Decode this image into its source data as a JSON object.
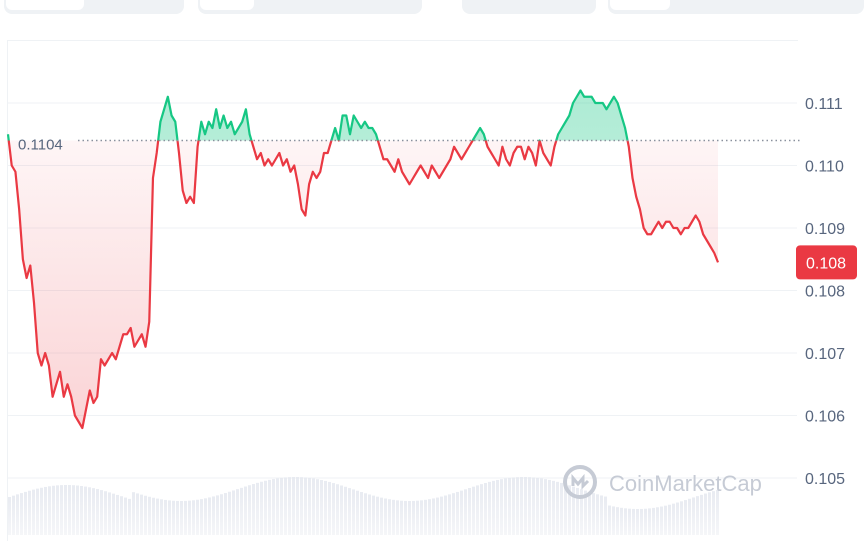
{
  "colors": {
    "up": "#16c784",
    "down": "#ea3943",
    "grid": "#eff2f5",
    "reference_line": "#8a919e",
    "axis_text": "#58667e",
    "badge_bg": "#ea3943",
    "volume": "#dfe3ee"
  },
  "watermark": {
    "text": "CoinMarketCap",
    "icon": "coinmarketcap-logo-icon"
  },
  "chart_data": {
    "type": "area",
    "title": "",
    "xlabel": "",
    "ylabel": "",
    "ylim": [
      0.1044,
      0.1117
    ],
    "y_ticks": [
      {
        "value": 0.111,
        "label": "0.111"
      },
      {
        "value": 0.11,
        "label": "0.110"
      },
      {
        "value": 0.109,
        "label": "0.109"
      },
      {
        "value": 0.108,
        "label": "0.108"
      },
      {
        "value": 0.107,
        "label": "0.107"
      },
      {
        "value": 0.106,
        "label": "0.106"
      },
      {
        "value": 0.105,
        "label": "0.105"
      }
    ],
    "grid": true,
    "reference": {
      "value": 0.1104,
      "label": "0.1104"
    },
    "current_price": {
      "value": 0.10845,
      "label": "0.108"
    },
    "fill_baseline": "reference",
    "series": [
      {
        "values": [
          0.1105,
          0.11,
          0.1099,
          0.1093,
          0.1085,
          0.1082,
          0.1084,
          0.1078,
          0.107,
          0.1068,
          0.107,
          0.1068,
          0.1063,
          0.1065,
          0.1067,
          0.1063,
          0.1065,
          0.1063,
          0.106,
          0.1059,
          0.1058,
          0.1061,
          0.1064,
          0.1062,
          0.1063,
          0.1069,
          0.1068,
          0.1069,
          0.107,
          0.1069,
          0.1071,
          0.1073,
          0.1073,
          0.1074,
          0.1071,
          0.1072,
          0.1073,
          0.1071,
          0.1075,
          0.1098,
          0.1102,
          0.1107,
          0.1109,
          0.1111,
          0.1108,
          0.1107,
          0.1102,
          0.1096,
          0.1094,
          0.1095,
          0.1094,
          0.1103,
          0.1107,
          0.1105,
          0.1107,
          0.1106,
          0.1109,
          0.1106,
          0.1108,
          0.1106,
          0.1107,
          0.1105,
          0.1106,
          0.1107,
          0.1109,
          0.1105,
          0.1103,
          0.1101,
          0.1102,
          0.11,
          0.1101,
          0.11,
          0.1101,
          0.1102,
          0.11,
          0.1101,
          0.1099,
          0.11,
          0.1097,
          0.1093,
          0.1092,
          0.1097,
          0.1099,
          0.1098,
          0.1099,
          0.1102,
          0.1102,
          0.1104,
          0.1106,
          0.1104,
          0.1108,
          0.1108,
          0.1105,
          0.1108,
          0.1107,
          0.1106,
          0.1107,
          0.1106,
          0.1106,
          0.1105,
          0.1103,
          0.1101,
          0.1101,
          0.11,
          0.1099,
          0.1101,
          0.1099,
          0.1098,
          0.1097,
          0.1098,
          0.1099,
          0.11,
          0.1099,
          0.1098,
          0.11,
          0.1099,
          0.1098,
          0.1099,
          0.11,
          0.1101,
          0.1103,
          0.1102,
          0.1101,
          0.1102,
          0.1103,
          0.1104,
          0.1105,
          0.1106,
          0.1105,
          0.1103,
          0.1102,
          0.1101,
          0.11,
          0.1103,
          0.1101,
          0.11,
          0.1102,
          0.1103,
          0.1103,
          0.1101,
          0.1103,
          0.1102,
          0.11,
          0.1104,
          0.1102,
          0.1101,
          0.11,
          0.1103,
          0.1105,
          0.1106,
          0.1107,
          0.1108,
          0.111,
          0.1111,
          0.1112,
          0.1111,
          0.1111,
          0.1111,
          0.111,
          0.111,
          0.111,
          0.1109,
          0.111,
          0.1111,
          0.111,
          0.1108,
          0.1106,
          0.1103,
          0.1098,
          0.1095,
          0.1093,
          0.109,
          0.1089,
          0.1089,
          0.109,
          0.1091,
          0.109,
          0.1091,
          0.1091,
          0.109,
          0.109,
          0.1089,
          0.109,
          0.109,
          0.1091,
          0.1092,
          0.1091,
          0.1089,
          0.1088,
          0.1087,
          0.1086,
          0.10845
        ]
      }
    ]
  }
}
